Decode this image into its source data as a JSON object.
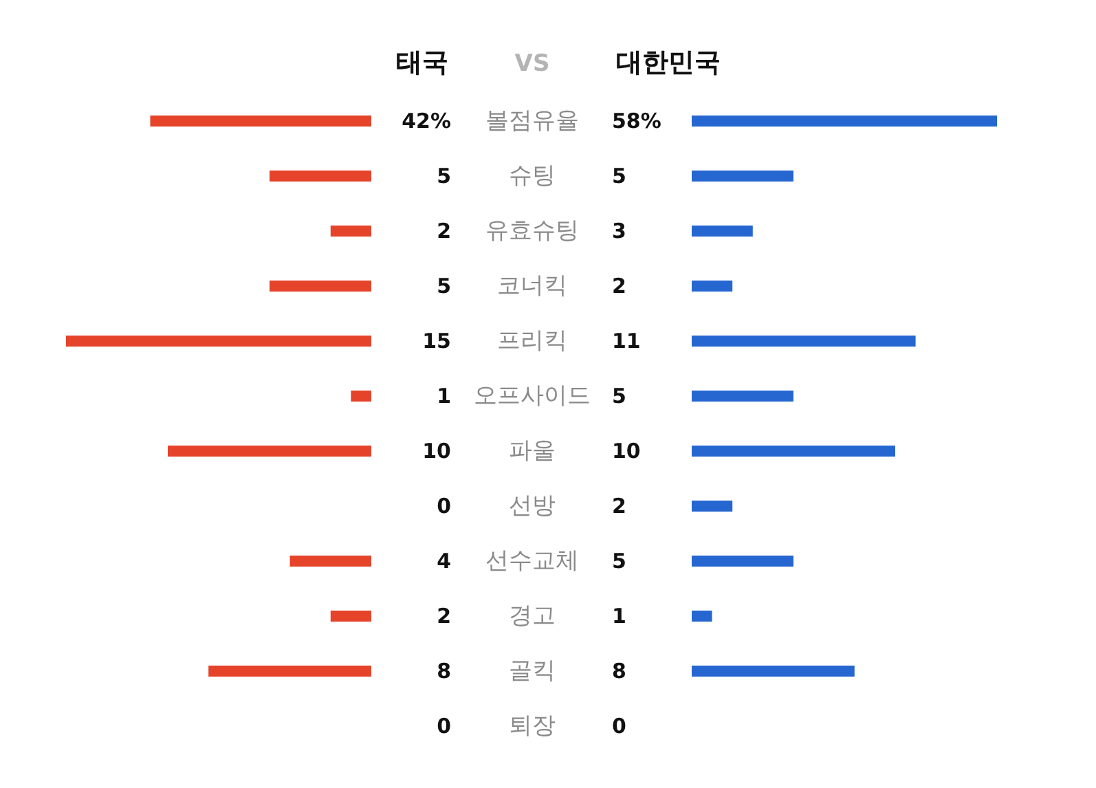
{
  "chart_data": [
    {
      "type": "bar",
      "orientation": "horizontal",
      "tick_labels": "y",
      "annotations": [
        "VS"
      ],
      "categories": [
        "볼점유율"
      ],
      "series": [
        {
          "name": "태국",
          "color": "#e5432a",
          "values": [
            42
          ],
          "value_labels": [
            "42%"
          ]
        }
      ]
    },
    {
      "type": "bar",
      "orientation": "horizontal",
      "tick_labels": false,
      "categories": [
        null
      ],
      "series": [
        {
          "name": "대한민국",
          "color": "#2566d1",
          "values": [
            58
          ],
          "value_labels": [
            "58%"
          ]
        }
      ]
    },
    {
      "type": "bar",
      "orientation": "horizontal",
      "tick_labels": "y",
      "data_labels": true,
      "categories": [
        "슈팅",
        "유효슈팅",
        "코너킥",
        "프리킥",
        "오프사이드",
        "파울",
        "선방",
        "선수교체",
        "경고",
        "골킥",
        "퇴장"
      ],
      "series": [
        {
          "color": "#e5432a",
          "values": [
            5,
            2,
            5,
            15,
            1,
            10,
            0,
            4,
            2,
            8,
            0
          ]
        }
      ]
    },
    {
      "type": "bar",
      "orientation": "horizontal",
      "tick_labels": false,
      "data_labels": true,
      "categories": [
        null,
        null,
        null,
        null,
        null,
        null,
        null,
        null,
        null,
        null,
        null
      ],
      "series": [
        {
          "color": "#2566d1",
          "values": [
            5,
            3,
            2,
            11,
            5,
            10,
            2,
            5,
            1,
            8,
            0
          ]
        }
      ]
    }
  ]
}
